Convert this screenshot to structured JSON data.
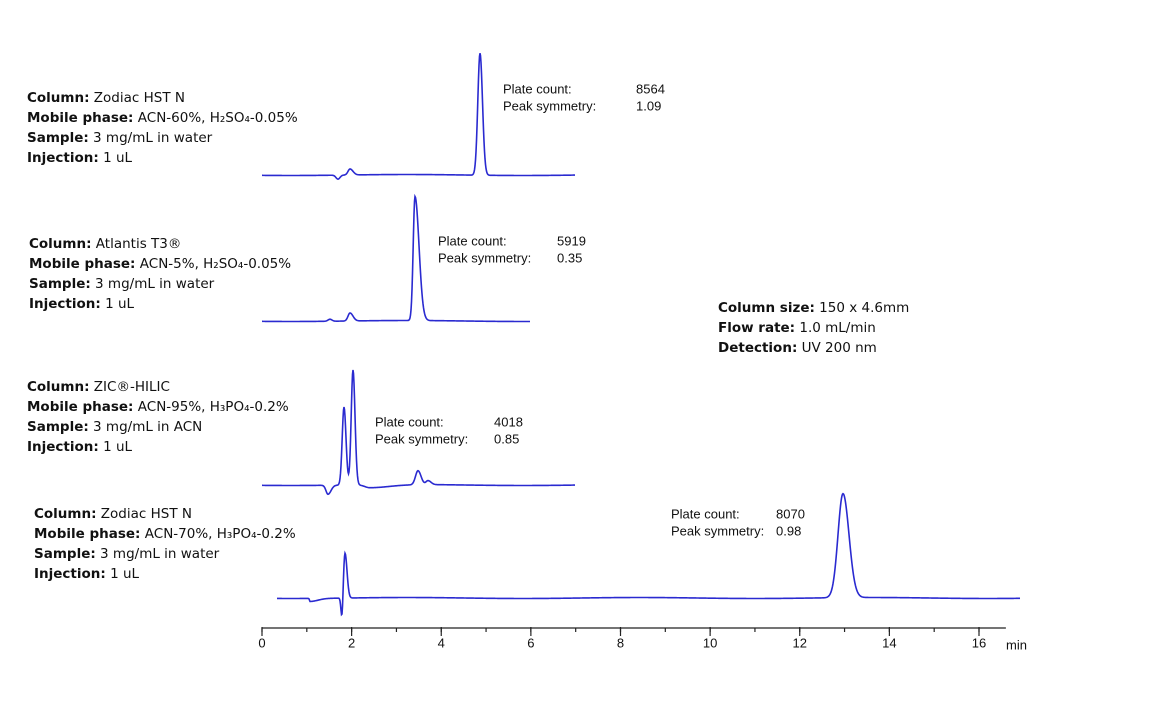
{
  "chart_data": {
    "type": "chromatogram",
    "x_unit": "min",
    "xlim": [
      0,
      16.6
    ],
    "xticks": [
      0,
      2,
      4,
      6,
      8,
      10,
      12,
      14,
      16
    ],
    "conditions": [
      {
        "label": "Column size:",
        "value": "150 x 4.6mm"
      },
      {
        "label": "Flow rate:",
        "value": "1.0 mL/min"
      },
      {
        "label": "Detection:",
        "value": "UV 200 nm"
      }
    ],
    "panels": [
      {
        "fields": [
          {
            "label": "Column:",
            "value": "Zodiac HST N"
          },
          {
            "label": "Mobile phase:",
            "value": "ACN-60%, H₂SO₄-0.05%"
          },
          {
            "label": "Sample:",
            "value": "3 mg/mL in water"
          },
          {
            "label": "Injection:",
            "value": "1 uL"
          }
        ],
        "plate_count_label": "Plate count:",
        "plate_count": 8564,
        "symmetry_label": "Peak symmetry:",
        "symmetry": 1.09
      },
      {
        "fields": [
          {
            "label": "Column:",
            "value": "Atlantis T3®"
          },
          {
            "label": "Mobile phase:",
            "value": "ACN-5%, H₂SO₄-0.05%"
          },
          {
            "label": "Sample:",
            "value": "3 mg/mL in water"
          },
          {
            "label": "Injection:",
            "value": "1 uL"
          }
        ],
        "plate_count_label": "Plate count:",
        "plate_count": 5919,
        "symmetry_label": "Peak symmetry:",
        "symmetry": 0.35
      },
      {
        "fields": [
          {
            "label": "Column:",
            "value": "ZIC®-HILIC"
          },
          {
            "label": "Mobile phase:",
            "value": "ACN-95%, H₃PO₄-0.2%"
          },
          {
            "label": "Sample:",
            "value": "3 mg/mL in ACN"
          },
          {
            "label": "Injection:",
            "value": "1 uL"
          }
        ],
        "plate_count_label": "Plate count:",
        "plate_count": 4018,
        "symmetry_label": "Peak symmetry:",
        "symmetry": 0.85
      },
      {
        "fields": [
          {
            "label": "Column:",
            "value": "Zodiac HST N"
          },
          {
            "label": "Mobile phase:",
            "value": "ACN-70%, H₃PO₄-0.2%"
          },
          {
            "label": "Sample:",
            "value": "3 mg/mL in water"
          },
          {
            "label": "Injection:",
            "value": "1 uL"
          }
        ],
        "plate_count_label": "Plate count:",
        "plate_count": 8070,
        "symmetry_label": "Peak symmetry:",
        "symmetry": 0.98
      }
    ]
  }
}
